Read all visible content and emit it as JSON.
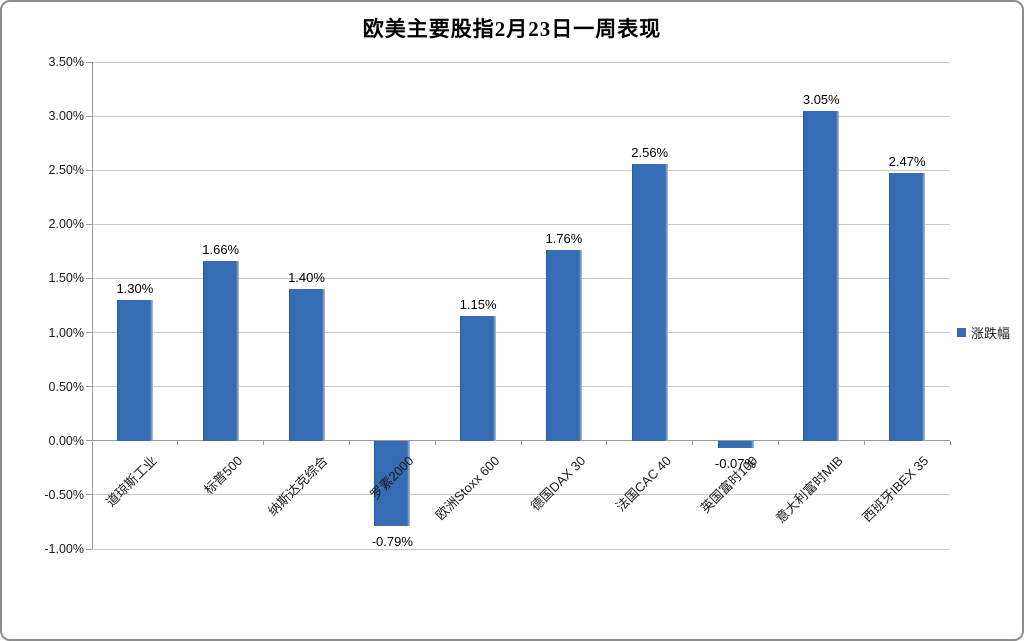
{
  "chart": {
    "title": "欧美主要股指2月23日一周表现",
    "legend_label": "涨跌幅"
  },
  "chart_data": {
    "type": "bar",
    "title": "欧美主要股指2月23日一周表现",
    "series_name": "涨跌幅",
    "categories": [
      "道琼斯工业",
      "标普500",
      "纳斯达克综合",
      "罗素2000",
      "欧洲Stoxx 600",
      "德国DAX 30",
      "法国CAC 40",
      "英国富时100",
      "意大利富时MIB",
      "西班牙IBEX 35"
    ],
    "values": [
      1.3,
      1.66,
      1.4,
      -0.79,
      1.15,
      1.76,
      2.56,
      -0.07,
      3.05,
      2.47
    ],
    "value_labels": [
      "1.30%",
      "1.66%",
      "1.40%",
      "-0.79%",
      "1.15%",
      "1.76%",
      "2.56%",
      "-0.07%",
      "3.05%",
      "2.47%"
    ],
    "xlabel": "",
    "ylabel": "",
    "ylim": [
      -1.0,
      3.5
    ],
    "y_tick_values": [
      3.5,
      3.0,
      2.5,
      2.0,
      1.5,
      1.0,
      0.5,
      0.0,
      -0.5,
      -1.0
    ],
    "y_tick_labels": [
      "3.50%",
      "3.00%",
      "2.50%",
      "2.00%",
      "1.50%",
      "1.00%",
      "0.50%",
      "0.00%",
      "-0.50%",
      "-1.00%"
    ],
    "grid": true,
    "legend_position": "right",
    "colors": {
      "bar": "#366CB4",
      "bar_edge_shadow": "#2C5A96",
      "bar_edge_highlight": "#A9C4E4",
      "gridline": "#C9C9C9",
      "axis": "#9A9A9A",
      "text": "#000000",
      "frame_border": "#8C8C8C"
    }
  }
}
